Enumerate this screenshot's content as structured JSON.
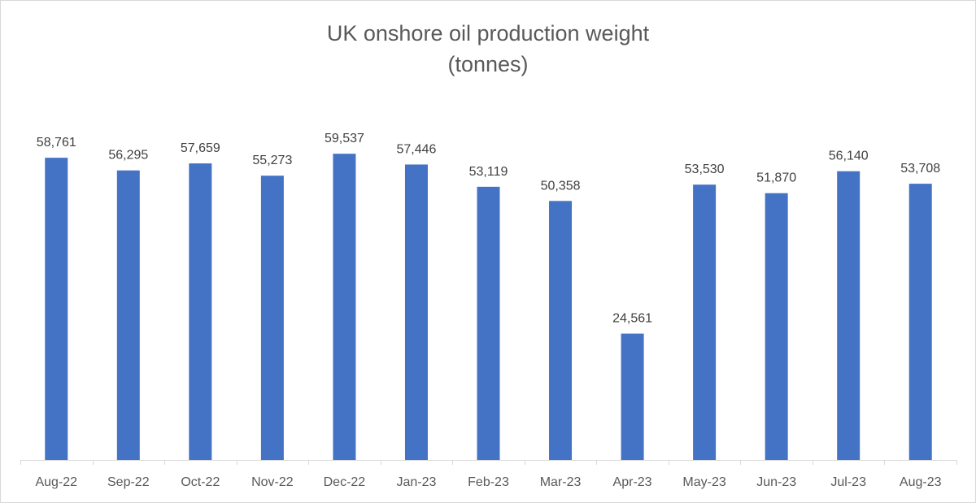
{
  "chart_data": {
    "type": "bar",
    "title": "UK onshore oil production weight",
    "subtitle": "(tonnes)",
    "xlabel": "",
    "ylabel": "",
    "categories": [
      "Aug-22",
      "Sep-22",
      "Oct-22",
      "Nov-22",
      "Dec-22",
      "Jan-23",
      "Feb-23",
      "Mar-23",
      "Apr-23",
      "May-23",
      "Jun-23",
      "Jul-23",
      "Aug-23"
    ],
    "values": [
      58761,
      56295,
      57659,
      55273,
      59537,
      57446,
      53119,
      50358,
      24561,
      53530,
      51870,
      56140,
      53708
    ],
    "data_labels": [
      "58,761",
      "56,295",
      "57,659",
      "55,273",
      "59,537",
      "57,446",
      "53,119",
      "50,358",
      "24,561",
      "53,530",
      "51,870",
      "56,140",
      "53,708"
    ],
    "ylim": [
      0,
      70000
    ],
    "grid": false,
    "legend": "none",
    "bar_color": "#4472C4"
  }
}
